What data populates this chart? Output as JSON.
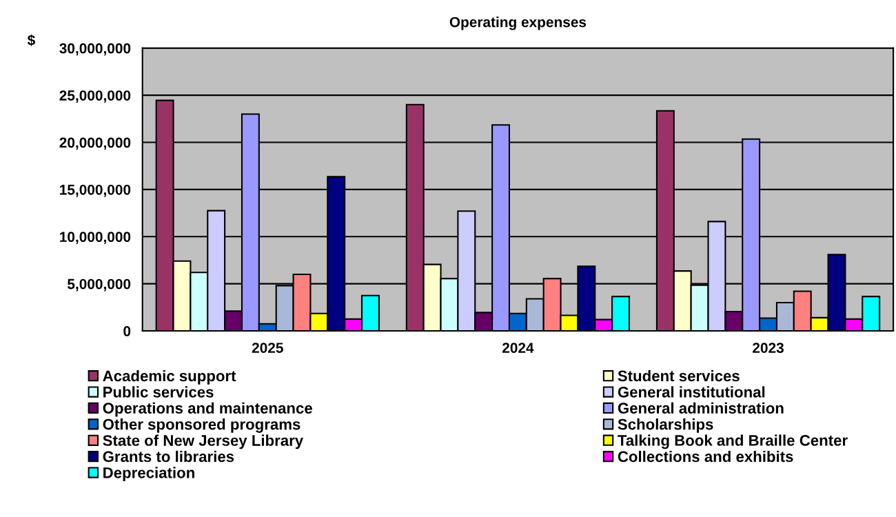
{
  "chart_data": {
    "type": "bar",
    "title": "Operating expenses",
    "ylabel": "$",
    "categories": [
      "2025",
      "2024",
      "2023"
    ],
    "series": [
      {
        "name": "Academic support",
        "color": "#993366",
        "values": [
          24450000,
          24000000,
          23350000
        ]
      },
      {
        "name": "Student services",
        "color": "#ffffcc",
        "values": [
          7400000,
          7050000,
          6350000
        ]
      },
      {
        "name": "Public services",
        "color": "#ccffff",
        "values": [
          6200000,
          5550000,
          4850000
        ]
      },
      {
        "name": "General institutional",
        "color": "#ccccff",
        "values": [
          12750000,
          12700000,
          11600000
        ]
      },
      {
        "name": "Operations and maintenance",
        "color": "#660066",
        "values": [
          2100000,
          1950000,
          2050000
        ]
      },
      {
        "name": "General administration",
        "color": "#9999ff",
        "values": [
          23000000,
          21850000,
          20350000
        ]
      },
      {
        "name": "Other sponsored programs",
        "color": "#0066cc",
        "values": [
          750000,
          1850000,
          1350000
        ]
      },
      {
        "name": "Scholarships",
        "color": "#a9b8d6",
        "values": [
          4800000,
          3400000,
          3000000
        ]
      },
      {
        "name": "State of New Jersey Library",
        "color": "#ff8080",
        "values": [
          6000000,
          5550000,
          4200000
        ]
      },
      {
        "name": "Talking Book and Braille Center",
        "color": "#ffff00",
        "values": [
          1850000,
          1650000,
          1400000
        ]
      },
      {
        "name": "Grants to libraries",
        "color": "#000080",
        "values": [
          16350000,
          6850000,
          8100000
        ]
      },
      {
        "name": "Collections and exhibits",
        "color": "#ff00ff",
        "values": [
          1250000,
          1200000,
          1250000
        ]
      },
      {
        "name": "Depreciation",
        "color": "#00ffff",
        "values": [
          3750000,
          3650000,
          3650000
        ]
      }
    ],
    "ylim": [
      0,
      30000000
    ],
    "yticks": [
      {
        "value": 0,
        "label": "0"
      },
      {
        "value": 5000000,
        "label": "5,000,000"
      },
      {
        "value": 10000000,
        "label": "10,000,000"
      },
      {
        "value": 15000000,
        "label": "15,000,000"
      },
      {
        "value": 20000000,
        "label": "20,000,000"
      },
      {
        "value": 25000000,
        "label": "25,000,000"
      },
      {
        "value": 30000000,
        "label": "30,000,000"
      }
    ],
    "grid": "y",
    "legend": "bottom"
  }
}
